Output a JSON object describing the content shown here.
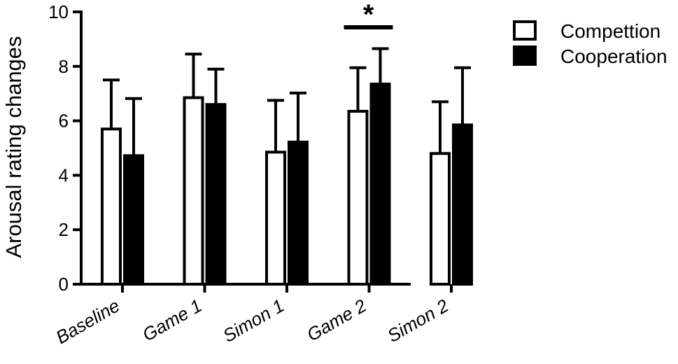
{
  "chart_data": {
    "type": "bar",
    "title": "",
    "xlabel": "",
    "ylabel": "Arousal rating changes",
    "ylim": [
      0,
      10
    ],
    "yticks": [
      "0",
      "2",
      "4",
      "6",
      "8",
      "10"
    ],
    "categories": [
      "Baseline",
      "Game 1",
      "Simon 1",
      "Game 2",
      "Simon 2"
    ],
    "series": [
      {
        "name": "Compettion",
        "fill": "#ffffff",
        "values": [
          5.7,
          6.85,
          4.85,
          6.35,
          4.8
        ],
        "error": [
          1.8,
          1.6,
          1.9,
          1.6,
          1.9
        ]
      },
      {
        "name": "Cooperation",
        "fill": "#000000",
        "values": [
          4.72,
          6.6,
          5.22,
          7.35,
          5.85
        ],
        "error": [
          2.1,
          1.3,
          1.8,
          1.3,
          2.1
        ]
      }
    ],
    "legend_position": "top-right",
    "significance": [
      {
        "category": "Game 2",
        "label": "*"
      }
    ]
  }
}
